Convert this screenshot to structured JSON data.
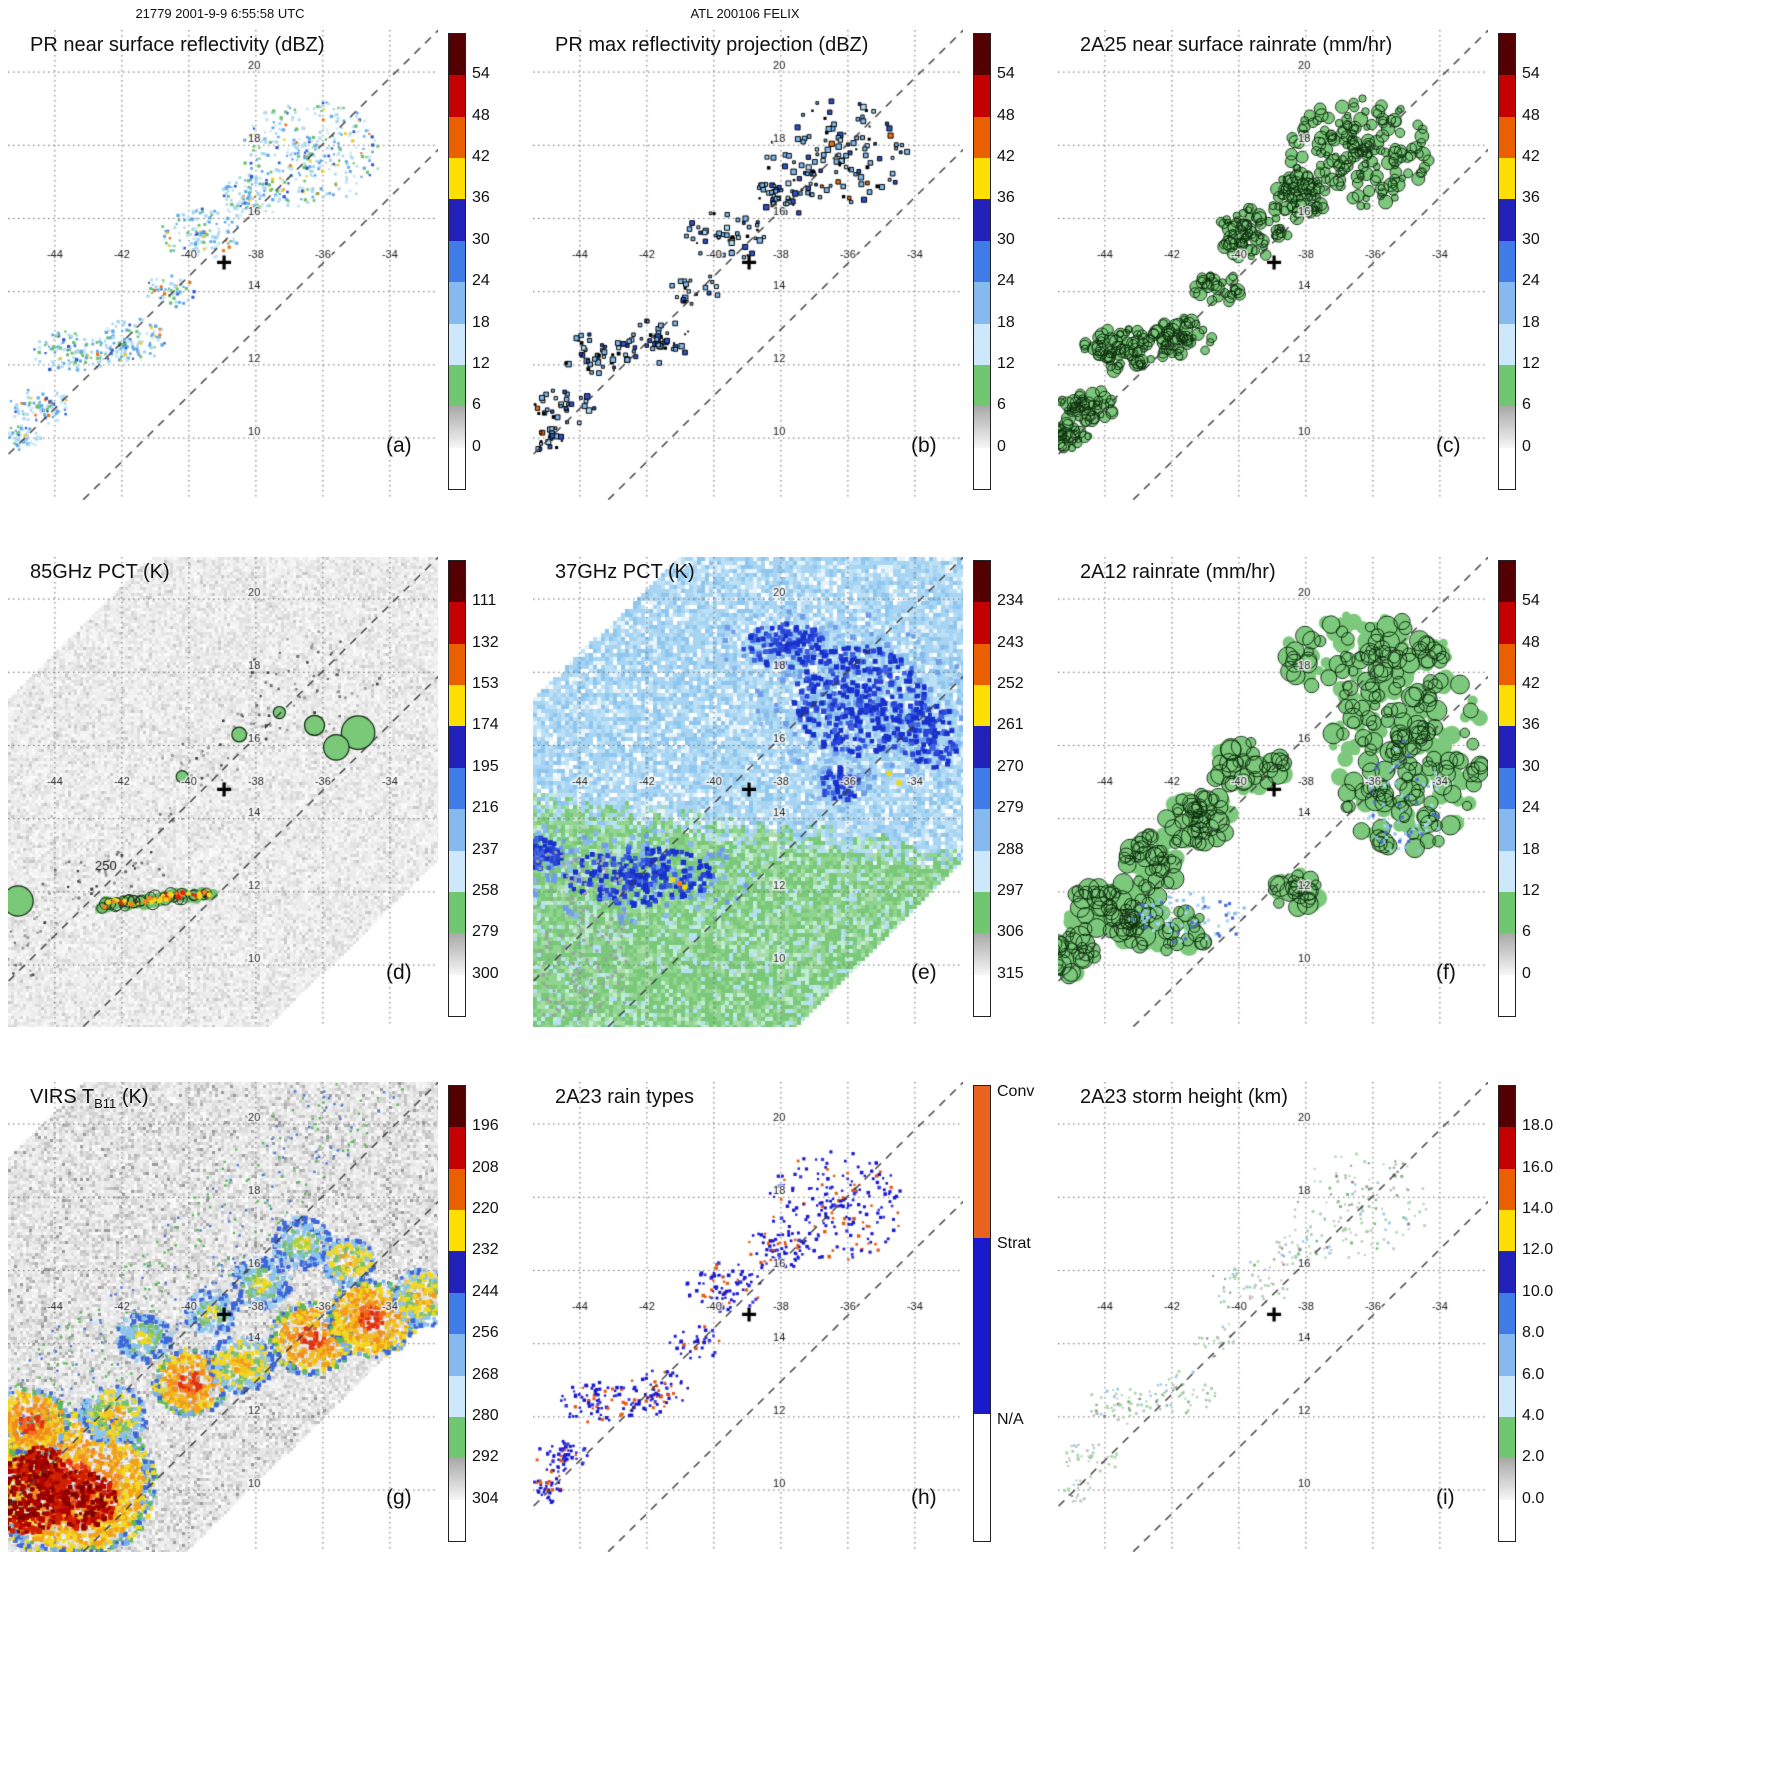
{
  "header": {
    "left": "21779 2001-9-9 6:55:58 UTC",
    "center": "ATL 200106 FELIX"
  },
  "chart_data": {
    "type": "heatmap",
    "axes": {
      "lon_ticks": [
        -44,
        -42,
        -40,
        -38,
        -36,
        -34
      ],
      "lat_ticks": [
        20,
        18,
        16,
        14,
        12,
        10
      ]
    },
    "marker": {
      "symbol": "+",
      "lon": -38.95,
      "lat": 14.8
    },
    "swath_lines": [
      {
        "p": [
          -44.5,
          10.36
        ],
        "m": 0.903
      },
      {
        "p": [
          -44.5,
          7.1
        ],
        "m": 0.903
      }
    ],
    "standard_colorbar_colors": [
      "#550000",
      "#c40000",
      "#ea6000",
      "#ffdf00",
      "#2222bb",
      "#3f7ce8",
      "#86b9f0",
      "#cce8fa",
      "#6fc86f",
      "gray-gradient",
      "#ffffff"
    ],
    "band_clusters": [
      {
        "lon": -36.4,
        "lat": 17.8,
        "rlon": 2.1,
        "rlat": 1.5,
        "w": 3
      },
      {
        "lon": -38.2,
        "lat": 16.6,
        "rlon": 0.9,
        "rlat": 0.6,
        "w": 1
      },
      {
        "lon": -39.7,
        "lat": 15.6,
        "rlon": 1.2,
        "rlat": 0.7,
        "w": 1.2
      },
      {
        "lon": -40.6,
        "lat": 14.1,
        "rlon": 0.8,
        "rlat": 0.5,
        "w": 0.5
      },
      {
        "lon": -41.7,
        "lat": 12.7,
        "rlon": 1.0,
        "rlat": 0.6,
        "w": 1
      },
      {
        "lon": -43.5,
        "lat": 12.4,
        "rlon": 1.2,
        "rlat": 0.6,
        "w": 1.2
      },
      {
        "lon": -44.5,
        "lat": 10.9,
        "rlon": 0.9,
        "rlat": 0.5,
        "w": 0.8
      },
      {
        "lon": -45.0,
        "lat": 10.05,
        "rlon": 0.55,
        "rlat": 0.35,
        "w": 0.5
      }
    ],
    "f_clusters": [
      {
        "lon": -35.0,
        "lat": 16.0,
        "rlon": 2.3,
        "rlat": 2.9,
        "w": 4
      },
      {
        "lon": -36.3,
        "lat": 18.5,
        "rlon": 2.5,
        "rlat": 1.1,
        "w": 2
      },
      {
        "lon": -39.7,
        "lat": 15.4,
        "rlon": 1.1,
        "rlat": 0.7,
        "w": 1
      },
      {
        "lon": -41.2,
        "lat": 14.0,
        "rlon": 1.0,
        "rlat": 0.7,
        "w": 1
      },
      {
        "lon": -42.5,
        "lat": 12.9,
        "rlon": 1.0,
        "rlat": 0.7,
        "w": 1
      },
      {
        "lon": -43.8,
        "lat": 11.6,
        "rlon": 1.5,
        "rlat": 0.8,
        "w": 1.5
      },
      {
        "lon": -45.0,
        "lat": 10.3,
        "rlon": 0.8,
        "rlat": 0.6,
        "w": 0.8
      },
      {
        "lon": -42.2,
        "lat": 10.9,
        "rlon": 1.5,
        "rlat": 0.6,
        "w": 1
      },
      {
        "lon": -38.3,
        "lat": 12.0,
        "rlon": 0.7,
        "rlat": 0.5,
        "w": 0.6
      }
    ],
    "e_dark": [
      {
        "lon": -35.7,
        "lat": 17.3,
        "rlon": 2.0,
        "rlat": 1.5,
        "w": 3
      },
      {
        "lon": -37.9,
        "lat": 18.8,
        "rlon": 1.3,
        "rlat": 0.6,
        "w": 1
      },
      {
        "lon": -42.3,
        "lat": 12.5,
        "rlon": 2.2,
        "rlat": 0.8,
        "w": 2
      },
      {
        "lon": -45.2,
        "lat": 13.1,
        "rlon": 0.6,
        "rlat": 0.5,
        "w": 0.6
      },
      {
        "lon": -36.3,
        "lat": 15.0,
        "rlon": 0.6,
        "rlat": 0.5,
        "w": 0.5
      },
      {
        "lon": -33.6,
        "lat": 16.3,
        "rlon": 0.9,
        "rlat": 0.9,
        "w": 0.8
      }
    ],
    "panels": [
      {
        "id": "a",
        "letter": "(a)",
        "title": "PR near surface reflectivity (dBZ)",
        "colorbar": {
          "ticks": [
            "54",
            "48",
            "42",
            "36",
            "30",
            "24",
            "18",
            "12",
            "6",
            "0"
          ],
          "colors": "standard"
        },
        "render": {
          "style": "speckle",
          "factor": 110,
          "size": [
            2,
            3.4
          ],
          "palette": [
            [
              "#a9d7f2",
              28
            ],
            [
              "#5fa8e8",
              24
            ],
            [
              "#c4e7f8",
              18
            ],
            [
              "#69c36d",
              16
            ],
            [
              "#2b55cc",
              8
            ],
            [
              "#f2c818",
              3
            ],
            [
              "#ef7014",
              3
            ]
          ]
        }
      },
      {
        "id": "b",
        "letter": "(b)",
        "title": "PR max reflectivity projection (dBZ)",
        "colorbar": {
          "ticks": [
            "54",
            "48",
            "42",
            "36",
            "30",
            "24",
            "18",
            "12",
            "6",
            "0"
          ],
          "colors": "standard"
        },
        "render": {
          "style": "outline",
          "factor": 40,
          "size": [
            2.5,
            5.5
          ],
          "palette": [
            [
              "#7db8ee",
              45
            ],
            [
              "#2a52cc",
              20
            ],
            [
              "#aadcf6",
              18
            ],
            [
              "#ef7014",
              4
            ],
            [
              "#000000",
              13
            ]
          ]
        }
      },
      {
        "id": "c",
        "letter": "(c)",
        "title": "2A25 near surface rainrate (mm/hr)",
        "colorbar": {
          "ticks": [
            "54",
            "48",
            "42",
            "36",
            "30",
            "24",
            "18",
            "12",
            "6",
            "0"
          ],
          "colors": "standard"
        },
        "render": {
          "style": "greenblob",
          "clusters": "band",
          "factor": 13,
          "radius": [
            2.5,
            6.5
          ],
          "fill": "#7cc87c",
          "stroke": "#0c300c",
          "strokeP": 1
        }
      },
      {
        "id": "d",
        "letter": "(d)",
        "title": "85GHz PCT (K)",
        "colorbar": {
          "ticks": [
            "111",
            "132",
            "153",
            "174",
            "195",
            "216",
            "237",
            "258",
            "279",
            "300"
          ],
          "colors": "standard"
        },
        "render": {
          "style": "tmi85",
          "swath": [
            7.8,
            -8.2
          ],
          "grays": [
            [
              "#f3f3f3",
              30
            ],
            [
              "#ececec",
              25
            ],
            [
              "#e3e3e3",
              20
            ],
            [
              "#d9d9d9",
              12
            ],
            [
              "#fafafa",
              10
            ],
            [
              "#c9c9c9",
              3
            ]
          ],
          "dark_speckle": {
            "factor": 18,
            "size": [
              2,
              3
            ],
            "palette": [
              [
                "#9a9a9a",
                50
              ],
              [
                "#6e6e6e",
                30
              ],
              [
                "#3e3e3e",
                20
              ]
            ]
          },
          "green_blobs": [
            [
              -34.95,
              16.35,
              0.5
            ],
            [
              -35.6,
              15.95,
              0.38
            ],
            [
              -36.25,
              16.55,
              0.3
            ],
            [
              -38.5,
              16.3,
              0.22
            ],
            [
              -37.3,
              16.9,
              0.18
            ],
            [
              -40.2,
              15.15,
              0.18
            ],
            [
              -45.1,
              11.75,
              0.45
            ]
          ],
          "streak": {
            "from": [
              -42.6,
              11.62
            ],
            "to": [
              -39.35,
              11.98
            ]
          },
          "contour_label": {
            "text": "250",
            "lon": -42.8,
            "lat": 12.6
          }
        }
      },
      {
        "id": "e",
        "letter": "(e)",
        "title": "37GHz PCT (K)",
        "colorbar": {
          "ticks": [
            "234",
            "243",
            "252",
            "261",
            "270",
            "279",
            "288",
            "297",
            "306",
            "315"
          ],
          "colors": "standard"
        },
        "render": {
          "style": "tmi37",
          "swath": [
            7.8,
            -8.2
          ],
          "boundary": {
            "lat0": 14.46,
            "slope": -0.118
          },
          "greens": [
            [
              "#79c979",
              40
            ],
            [
              "#8fd48f",
              25
            ],
            [
              "#a9dca9",
              15
            ],
            [
              "#c2ecd4",
              10
            ],
            [
              "#b4e0f4",
              10
            ]
          ],
          "blues": [
            [
              "#a6d4f2",
              35
            ],
            [
              "#bce0f6",
              25
            ],
            [
              "#8fc6ee",
              20
            ],
            [
              "#e6f3fb",
              12
            ],
            [
              "#ffffff",
              8
            ]
          ],
          "mid_colors": [
            [
              "#6f9ce8",
              1
            ],
            [
              "#88b8ee",
              1
            ]
          ],
          "dark_colors": [
            [
              "#1830cc",
              5
            ],
            [
              "#2a46d8",
              3
            ],
            [
              "#3f64e0",
              2
            ]
          ],
          "yellow": [
            [
              -34.85,
              15.3
            ],
            [
              -34.55,
              15.05
            ],
            [
              -41.3,
              12.4
            ],
            [
              -40.95,
              12.2
            ]
          ],
          "orange": [
            [
              -41.1,
              12.3
            ]
          ]
        }
      },
      {
        "id": "f",
        "letter": "(f)",
        "title": "2A12 rainrate (mm/hr)",
        "colorbar": {
          "ticks": [
            "54",
            "48",
            "42",
            "36",
            "30",
            "24",
            "18",
            "12",
            "6",
            "0"
          ],
          "colors": "standard"
        },
        "render": {
          "style": "greenblob",
          "clusters": "f",
          "factor": 13,
          "radius": [
            4,
            10
          ],
          "fill": "#7cc87c",
          "stroke": "#0c300c",
          "strokeP": 0.55,
          "blue": {
            "n": 70,
            "colors": [
              "#8cc2ee",
              "#4a6ed6",
              "#a6d8f2"
            ],
            "regions": [
              {
                "lon": -35.1,
                "lat": 14.6,
                "rlon": 1.2,
                "rlat": 1.6
              },
              {
                "lon": -41.5,
                "lat": 11.3,
                "rlon": 1.8,
                "rlat": 0.7
              }
            ]
          }
        }
      },
      {
        "id": "g",
        "letter": "(g)",
        "title": "VIRS T",
        "title_sub": "B11",
        "title_end": " (K)",
        "colorbar": {
          "ticks": [
            "196",
            "208",
            "220",
            "232",
            "244",
            "256",
            "268",
            "280",
            "292",
            "304"
          ],
          "colors": "standard"
        },
        "render": {
          "style": "virs",
          "swath": [
            9.6,
            -6.0
          ],
          "grays": [
            [
              "#f0f0f0",
              25
            ],
            [
              "#e8e8e8",
              22
            ],
            [
              "#dedede",
              18
            ],
            [
              "#d2d2d2",
              12
            ],
            [
              "#fafafa",
              10
            ],
            [
              "#c4c4c4",
              8
            ],
            [
              "#b2b2b2",
              3
            ],
            [
              "#9a9a9a",
              2
            ]
          ],
          "band_specks": {
            "green": "#5cb85c",
            "blue": "#4a78d8",
            "n": 380
          },
          "blobs": [
            [
              -43.6,
              10.2,
              2.6,
              "hot"
            ],
            [
              -44.8,
              11.9,
              1.2,
              "hot"
            ],
            [
              -42.3,
              12.1,
              1.0,
              "mixed"
            ],
            [
              -40.0,
              13.0,
              1.15,
              "hot"
            ],
            [
              -38.5,
              13.5,
              1.0,
              "mixed"
            ],
            [
              -36.4,
              14.2,
              1.25,
              "hot"
            ],
            [
              -34.6,
              14.75,
              1.35,
              "hot"
            ],
            [
              -33.0,
              15.3,
              1.0,
              "mixed"
            ],
            [
              -37.9,
              15.7,
              0.9,
              "cool"
            ],
            [
              -39.4,
              14.9,
              0.8,
              "cool"
            ],
            [
              -41.4,
              14.2,
              0.85,
              "cool"
            ],
            [
              -36.7,
              16.8,
              0.9,
              "cool"
            ],
            [
              -35.3,
              16.3,
              0.8,
              "mixed"
            ],
            [
              -44.9,
              9.9,
              1.3,
              "darkred"
            ],
            [
              -43.2,
              9.8,
              1.0,
              "darkred"
            ],
            [
              -44.4,
              10.7,
              0.7,
              "darkred"
            ]
          ]
        }
      },
      {
        "id": "h",
        "letter": "(h)",
        "title": "2A23 rain types",
        "colorbar": {
          "type": "raintype",
          "segments": [
            {
              "label": "Conv",
              "color": "#e8641e",
              "frac": 0.335
            },
            {
              "label": "Strat",
              "color": "#1a1acd",
              "frac": 0.385
            },
            {
              "label": "N/A",
              "color": "#ffffff",
              "frac": 0.28
            }
          ]
        },
        "render": {
          "style": "speckle",
          "factor": 70,
          "size": [
            2.2,
            3.6
          ],
          "palette": [
            [
              "#1a1ad2",
              68
            ],
            [
              "#3a3ae0",
              12
            ],
            [
              "#e85a10",
              20
            ]
          ]
        }
      },
      {
        "id": "i",
        "letter": "(i)",
        "title": "2A23 storm height (km)",
        "colorbar": {
          "ticks": [
            "18.0",
            "16.0",
            "14.0",
            "12.0",
            "10.0",
            "8.0",
            "6.0",
            "4.0",
            "2.0",
            "0.0"
          ],
          "colors": "standard"
        },
        "render": {
          "style": "speckle",
          "factor": 45,
          "size": [
            1.8,
            3
          ],
          "palette": [
            [
              "#a8d8a8",
              35
            ],
            [
              "#c2c2c2",
              28
            ],
            [
              "#9cc8e8",
              14
            ],
            [
              "#7cb87c",
              15
            ],
            [
              "#8a8a8a",
              8
            ]
          ]
        }
      }
    ]
  }
}
